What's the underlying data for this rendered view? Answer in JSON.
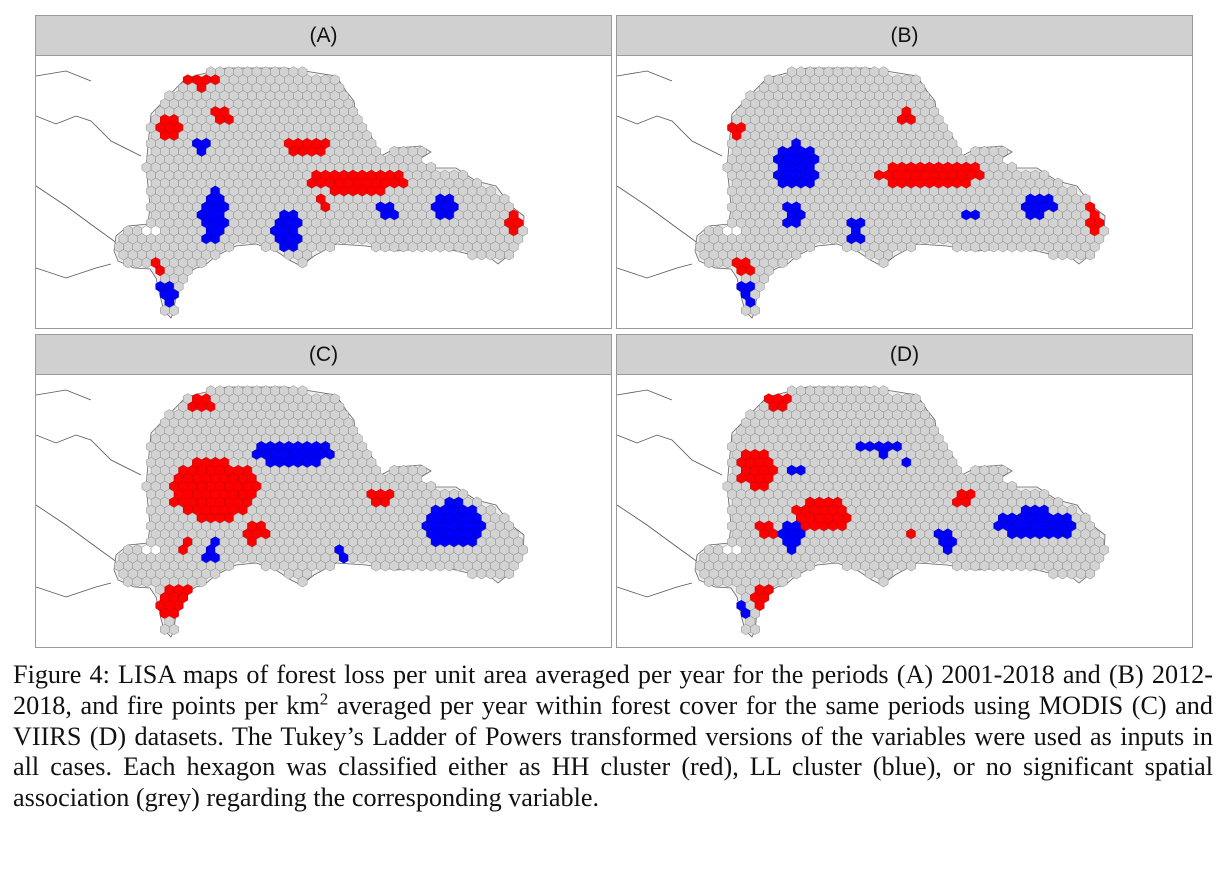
{
  "panels": [
    {
      "label": "(A)",
      "hh_color": "#ff0000",
      "ll_color": "#0000ff",
      "ns_color": "#d3d3d3"
    },
    {
      "label": "(B)",
      "hh_color": "#ff0000",
      "ll_color": "#0000ff",
      "ns_color": "#d3d3d3"
    },
    {
      "label": "(C)",
      "hh_color": "#ff0000",
      "ll_color": "#0000ff",
      "ns_color": "#d3d3d3"
    },
    {
      "label": "(D)",
      "hh_color": "#ff0000",
      "ll_color": "#0000ff",
      "ns_color": "#d3d3d3"
    }
  ],
  "caption": {
    "part1": "Figure 4: LISA maps of forest loss per unit area averaged per year for the periods (A) 2001-2018 and (B) 2012-2018, and fire points per km",
    "sup": "2",
    "part2": " averaged per year within forest cover for the same periods using MODIS (C) and VIIRS (D) datasets. The Tukey’s Ladder of Powers transformed versions of the variables were used as inputs in all cases. Each hexagon was classified either as HH cluster (red), LL cluster (blue), or no significant spatial association (grey) regarding the corresponding variable."
  }
}
